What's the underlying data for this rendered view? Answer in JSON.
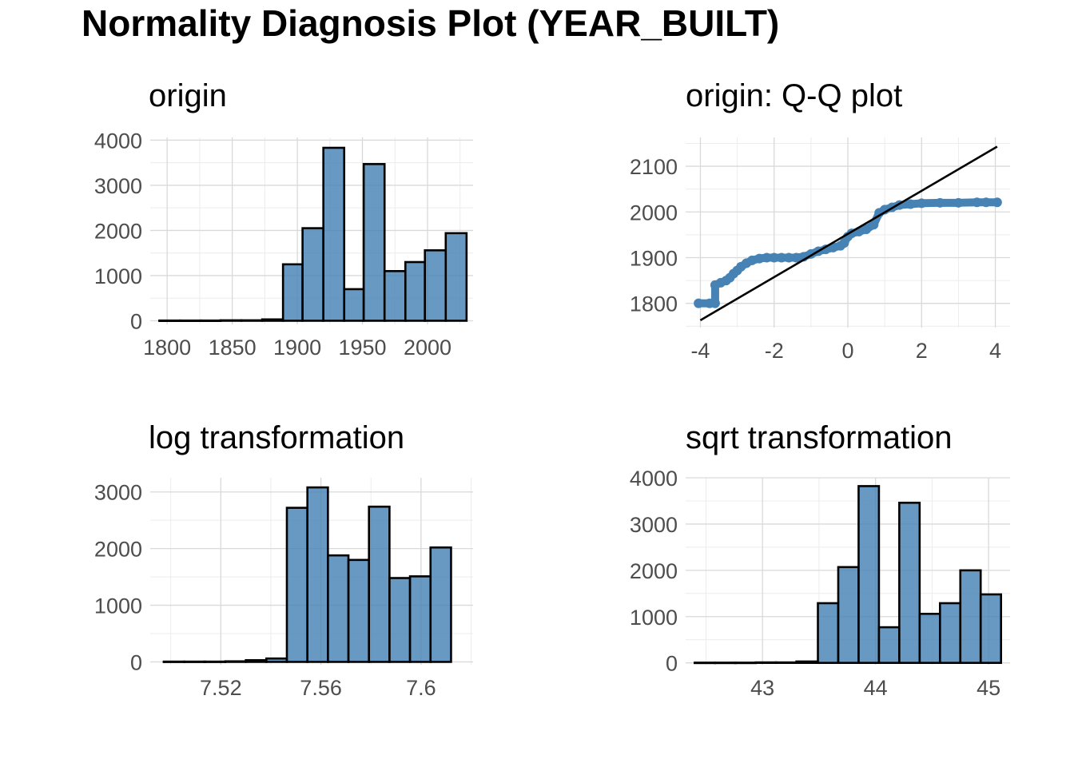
{
  "title": "Normality Diagnosis Plot (YEAR_BUILT)",
  "colors": {
    "fill": "#4682B4",
    "outline": "#000000",
    "grid": "#d9d9d9",
    "tick_text": "#4d4d4d"
  },
  "chart_data": [
    {
      "type": "histogram",
      "title": "origin",
      "xlabel": "",
      "ylabel": "",
      "xlim": [
        1787,
        2035
      ],
      "ylim": [
        -80,
        4060
      ],
      "x_ticks": [
        1800,
        1850,
        1900,
        1950,
        2000
      ],
      "y_ticks": [
        0,
        1000,
        2000,
        3000,
        4000
      ],
      "bin_edges": [
        1794,
        1810,
        1826,
        1841,
        1857,
        1873,
        1889,
        1904,
        1920,
        1936,
        1951,
        1967,
        1983,
        1998,
        2014,
        2030
      ],
      "counts": [
        5,
        5,
        5,
        10,
        10,
        30,
        1250,
        2050,
        3830,
        700,
        3470,
        1100,
        1300,
        1560,
        1940
      ],
      "grid": true,
      "legend": "none"
    },
    {
      "type": "scatter",
      "title": "origin: Q-Q plot",
      "xlabel": "",
      "ylabel": "",
      "xlim": [
        -4.4,
        4.4
      ],
      "ylim": [
        1747,
        2163
      ],
      "x_ticks": [
        -4,
        -2,
        0,
        2,
        4
      ],
      "y_ticks": [
        1800,
        1900,
        2000,
        2100
      ],
      "points": [
        [
          -4.05,
          1800
        ],
        [
          -3.75,
          1800
        ],
        [
          -3.6,
          1800
        ],
        [
          -3.6,
          1840
        ],
        [
          -3.45,
          1845
        ],
        [
          -3.3,
          1850
        ],
        [
          -3.2,
          1856
        ],
        [
          -3.1,
          1865
        ],
        [
          -3.0,
          1872
        ],
        [
          -2.9,
          1880
        ],
        [
          -2.75,
          1888
        ],
        [
          -2.6,
          1894
        ],
        [
          -2.4,
          1898
        ],
        [
          -2.2,
          1900
        ],
        [
          -2.0,
          1900
        ],
        [
          -1.8,
          1900
        ],
        [
          -1.6,
          1900
        ],
        [
          -1.4,
          1900
        ],
        [
          -1.2,
          1902
        ],
        [
          -1.0,
          1908
        ],
        [
          -0.8,
          1914
        ],
        [
          -0.6,
          1918
        ],
        [
          -0.4,
          1922
        ],
        [
          -0.2,
          1926
        ],
        [
          -0.1,
          1932
        ],
        [
          0.0,
          1946
        ],
        [
          0.1,
          1953
        ],
        [
          0.3,
          1957
        ],
        [
          0.5,
          1962
        ],
        [
          0.7,
          1972
        ],
        [
          0.85,
          1998
        ],
        [
          1.0,
          2005
        ],
        [
          1.2,
          2010
        ],
        [
          1.4,
          2015
        ],
        [
          1.7,
          2017
        ],
        [
          2.0,
          2019
        ],
        [
          2.5,
          2020
        ],
        [
          3.0,
          2020
        ],
        [
          3.5,
          2021
        ],
        [
          3.75,
          2021
        ],
        [
          4.05,
          2021
        ]
      ],
      "reference_line": [
        [
          -4.0,
          1763
        ],
        [
          4.05,
          2143
        ]
      ],
      "grid": true,
      "legend": "none"
    },
    {
      "type": "histogram",
      "title": "log transformation",
      "xlabel": "",
      "ylabel": "",
      "xlim": [
        7.4918,
        7.6208
      ],
      "ylim": [
        -50,
        3250
      ],
      "x_ticks": [
        7.52,
        7.56,
        7.6
      ],
      "y_ticks": [
        0,
        1000,
        2000,
        3000
      ],
      "bin_edges": [
        7.4972,
        7.5054,
        7.5136,
        7.5218,
        7.53,
        7.5382,
        7.5464,
        7.5546,
        7.5628,
        7.571,
        7.5792,
        7.5874,
        7.5956,
        7.6038,
        7.612
      ],
      "counts": [
        5,
        5,
        5,
        10,
        30,
        60,
        2720,
        3080,
        1880,
        1800,
        2740,
        1480,
        1510,
        2020
      ],
      "grid": true,
      "legend": "none"
    },
    {
      "type": "histogram",
      "title": "sqrt transformation",
      "xlabel": "",
      "ylabel": "",
      "xlim": [
        42.32,
        45.19
      ],
      "ylim": [
        -40,
        4000
      ],
      "x_ticks": [
        43,
        44,
        45
      ],
      "y_ticks": [
        0,
        1000,
        2000,
        3000,
        4000
      ],
      "bin_edges": [
        42.4,
        42.58,
        42.76,
        42.94,
        43.12,
        43.3,
        43.49,
        43.67,
        43.85,
        44.03,
        44.21,
        44.39,
        44.57,
        44.75,
        44.93,
        45.11
      ],
      "counts": [
        5,
        5,
        5,
        10,
        10,
        30,
        1290,
        2070,
        3820,
        770,
        3460,
        1060,
        1290,
        2000,
        1480
      ],
      "grid": true,
      "legend": "none"
    }
  ]
}
